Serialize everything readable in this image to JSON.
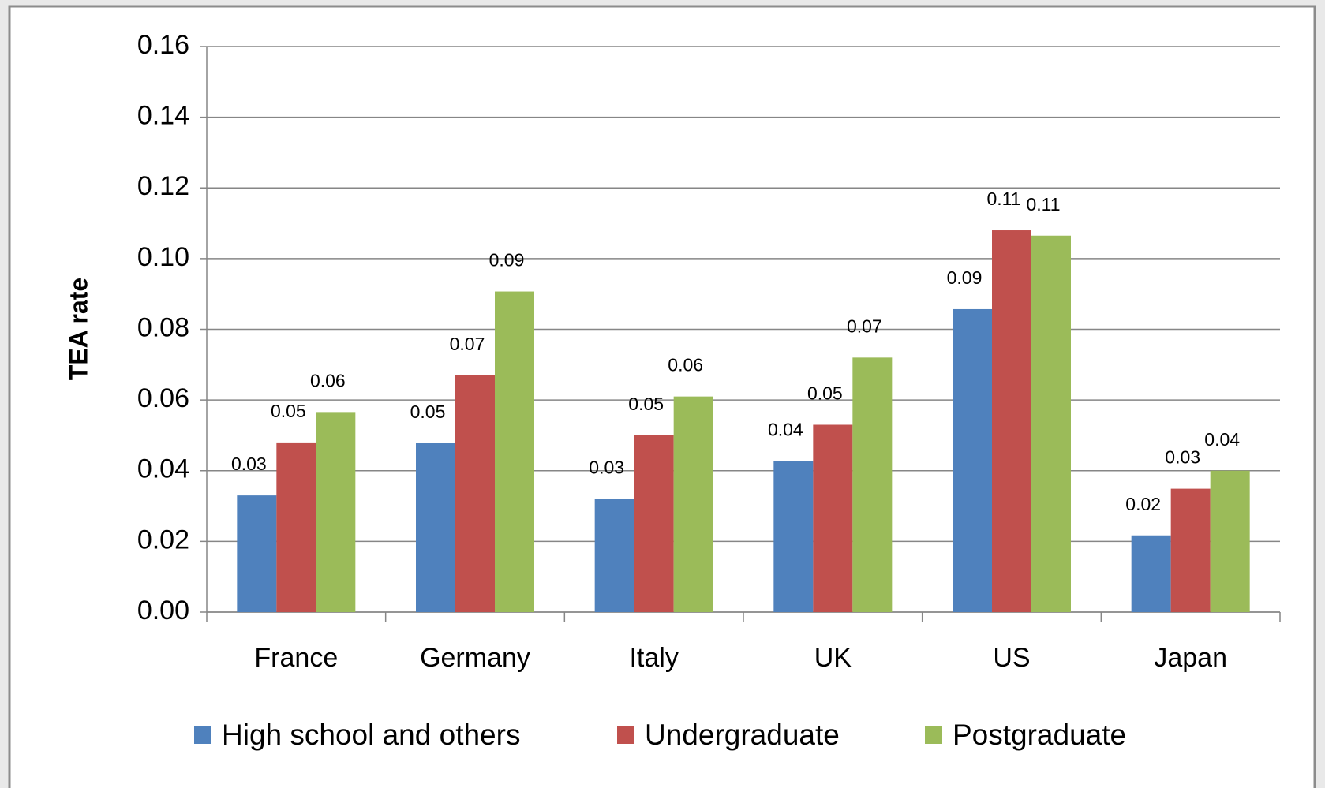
{
  "chart_data": {
    "type": "bar",
    "y_label": "TEA rate",
    "categories": [
      "France",
      "Germany",
      "Italy",
      "UK",
      "US",
      "Japan"
    ],
    "series": [
      {
        "name": "High school and others",
        "color": "#4f81bd",
        "values": [
          0.033,
          0.0478,
          0.032,
          0.0427,
          0.0857,
          0.0217
        ],
        "value_labels": [
          "0.03",
          "0.05",
          "0.03",
          "0.04",
          "0.09",
          "0.02"
        ]
      },
      {
        "name": "Undergraduate",
        "color": "#c0504d",
        "values": [
          0.048,
          0.067,
          0.05,
          0.053,
          0.108,
          0.0349
        ],
        "value_labels": [
          "0.05",
          "0.07",
          "0.05",
          "0.05",
          "0.11",
          "0.03"
        ]
      },
      {
        "name": "Postgraduate",
        "color": "#9bbb59",
        "values": [
          0.0566,
          0.0907,
          0.061,
          0.072,
          0.1065,
          0.04
        ],
        "value_labels": [
          "0.06",
          "0.09",
          "0.06",
          "0.07",
          "0.11",
          "0.04"
        ]
      }
    ],
    "ylim": [
      0,
      0.16
    ],
    "yticks": [
      {
        "value": 0,
        "label": "0.00"
      },
      {
        "value": 0.02,
        "label": "0.02"
      },
      {
        "value": 0.04,
        "label": "0.04"
      },
      {
        "value": 0.06,
        "label": "0.06"
      },
      {
        "value": 0.08,
        "label": "0.08"
      },
      {
        "value": 0.1,
        "label": "0.10"
      },
      {
        "value": 0.12,
        "label": "0.12"
      },
      {
        "value": 0.14,
        "label": "0.14"
      },
      {
        "value": 0.16,
        "label": "0.16"
      }
    ],
    "grid": true,
    "legend": "bottom"
  }
}
